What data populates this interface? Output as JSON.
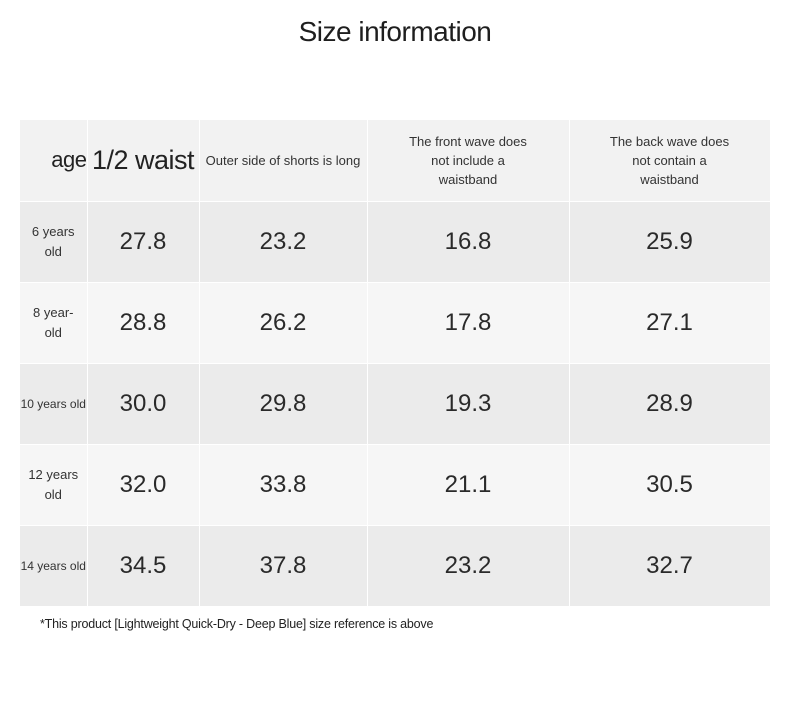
{
  "title": "Size information",
  "table": {
    "headers": {
      "age": "age",
      "waist": "1/2 waist",
      "outer": "Outer side of shorts is long",
      "front": "The front wave does not include a waistband",
      "back": "The back wave does not contain a waistband"
    },
    "rows": [
      {
        "age": "6 years old",
        "waist": "27.8",
        "outer": "23.2",
        "front": "16.8",
        "back": "25.9"
      },
      {
        "age": "8 year-old",
        "waist": "28.8",
        "outer": "26.2",
        "front": "17.8",
        "back": "27.1"
      },
      {
        "age": "10 years old",
        "waist": "30.0",
        "outer": "29.8",
        "front": "19.3",
        "back": "28.9"
      },
      {
        "age": "12 years old",
        "waist": "32.0",
        "outer": "33.8",
        "front": "21.1",
        "back": "30.5"
      },
      {
        "age": "14 years old",
        "waist": "34.5",
        "outer": "37.8",
        "front": "23.2",
        "back": "32.7"
      }
    ]
  },
  "note": "*This product [Lightweight Quick-Dry - Deep Blue] size reference is above",
  "colors": {
    "header_bg": "#f2f2f2",
    "row_dark": "#ebebeb",
    "row_light": "#f6f6f6",
    "text": "#222222"
  }
}
